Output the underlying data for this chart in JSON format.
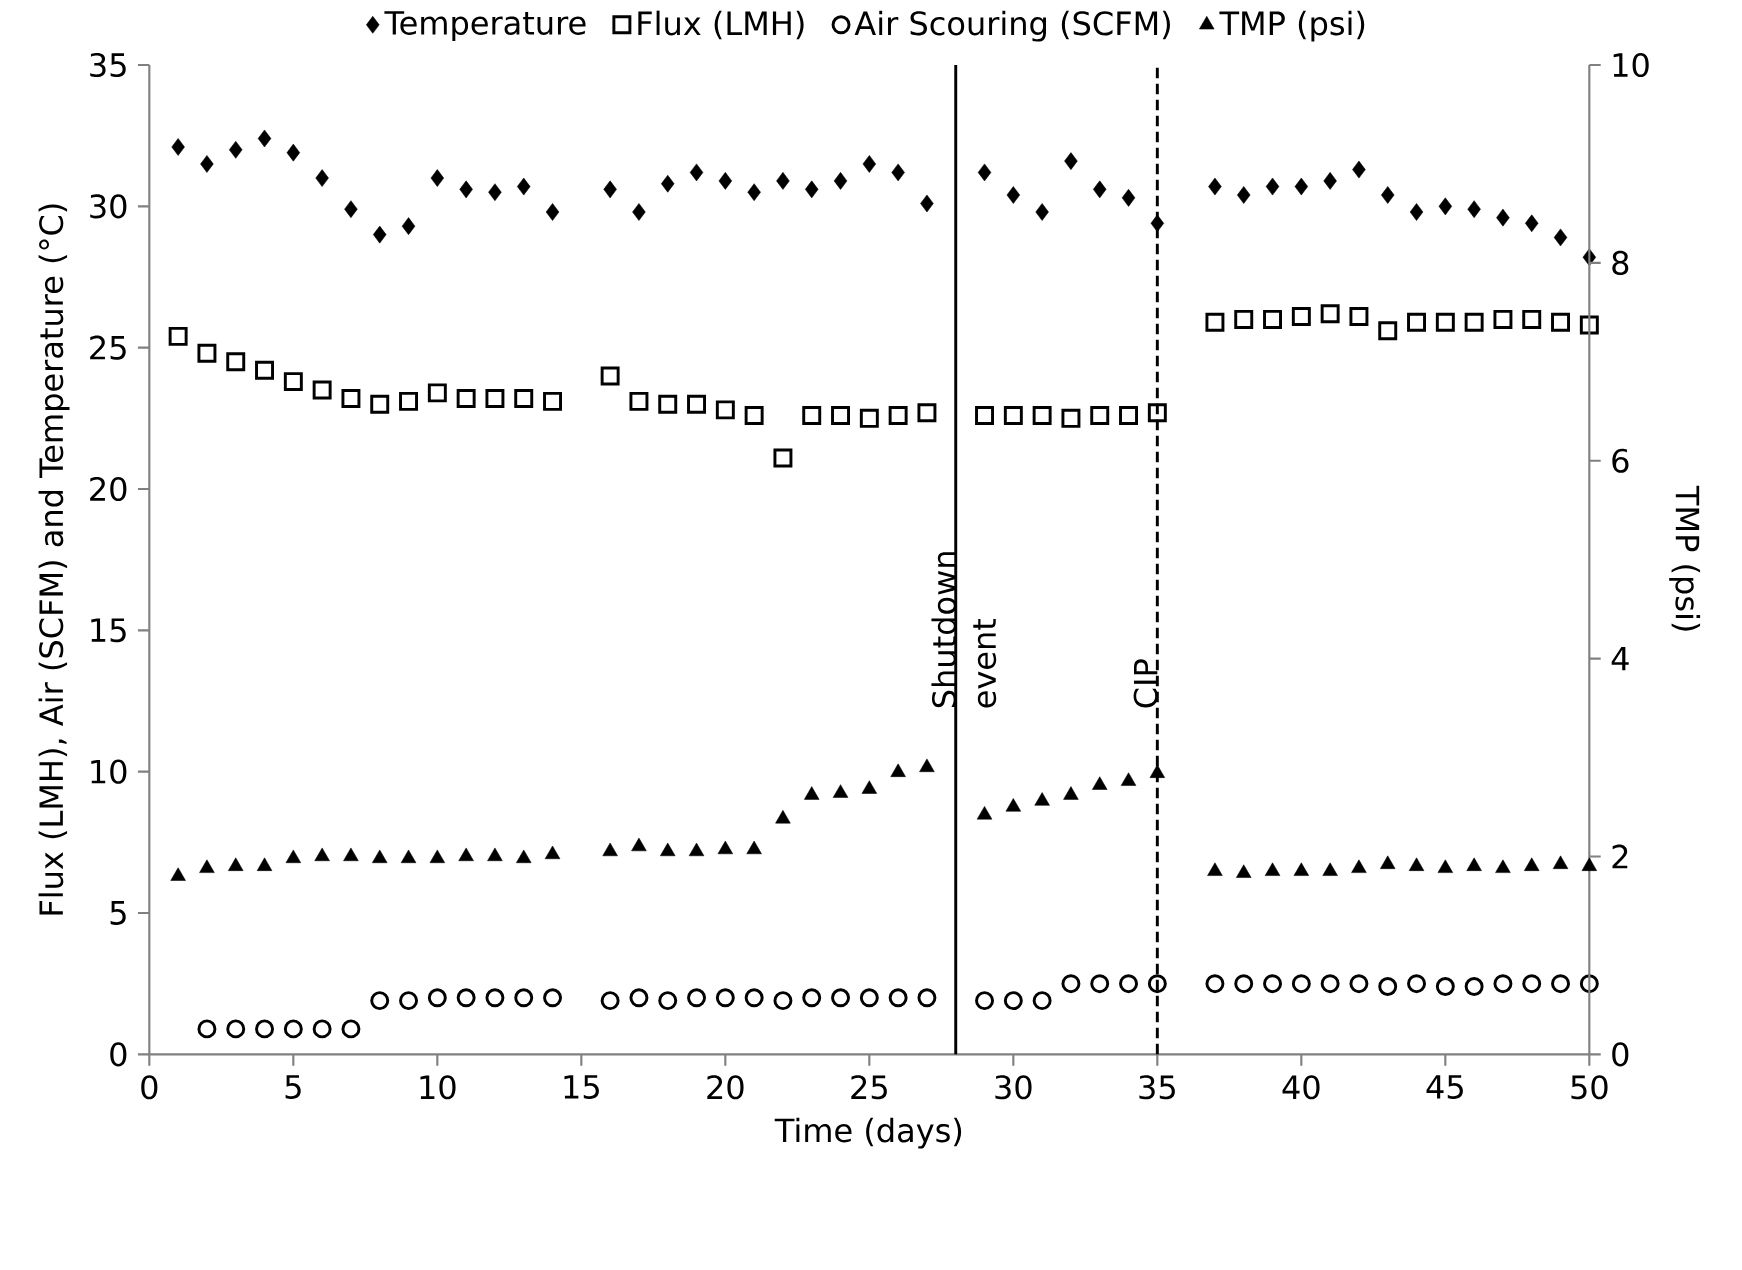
{
  "chart_data": {
    "type": "scatter",
    "xlabel": "Time (days)",
    "ylabel": "Flux (LMH), Air (SCFM) and Temperature (°C)",
    "y2label": "TMP (psi)",
    "x": [
      1,
      2,
      3,
      4,
      5,
      6,
      7,
      8,
      9,
      10,
      11,
      12,
      13,
      14,
      15,
      16,
      17,
      18,
      19,
      20,
      21,
      22,
      23,
      24,
      25,
      26,
      27,
      28,
      29,
      30,
      31,
      32,
      33,
      34,
      35,
      36,
      37,
      38,
      39,
      40,
      41,
      42,
      43,
      44,
      45,
      46,
      47,
      48,
      49,
      50
    ],
    "xlim": [
      0,
      50
    ],
    "xticks": [
      0,
      5,
      10,
      15,
      20,
      25,
      30,
      35,
      40,
      45,
      50
    ],
    "ylim": [
      0,
      35
    ],
    "yticks": [
      0,
      5,
      10,
      15,
      20,
      25,
      30,
      35
    ],
    "y2lim": [
      0,
      10
    ],
    "y2ticks": [
      0,
      2,
      4,
      6,
      8,
      10
    ],
    "legend": "top",
    "grid": false,
    "series": [
      {
        "name": "Temperature",
        "color": "#000000",
        "marker": "diamond",
        "values": [
          32.1,
          31.5,
          32.0,
          32.4,
          31.9,
          31.0,
          29.9,
          29.0,
          29.3,
          31.0,
          30.6,
          30.5,
          30.7,
          29.8,
          null,
          30.6,
          29.8,
          30.8,
          31.2,
          30.9,
          30.5,
          30.9,
          30.6,
          30.9,
          31.5,
          31.2,
          30.1,
          null,
          31.2,
          30.4,
          29.8,
          31.6,
          30.6,
          30.3,
          29.4,
          null,
          30.7,
          30.4,
          30.7,
          30.7,
          30.9,
          31.3,
          30.4,
          29.8,
          30.0,
          29.9,
          29.6,
          29.4,
          28.9,
          28.2
        ]
      },
      {
        "name": "Flux (LMH)",
        "color": "#000000",
        "marker": "square",
        "values": [
          25.4,
          24.8,
          24.5,
          24.2,
          23.8,
          23.5,
          23.2,
          23.0,
          23.1,
          23.4,
          23.2,
          23.2,
          23.2,
          23.1,
          null,
          24.0,
          23.1,
          23.0,
          23.0,
          22.8,
          22.6,
          21.1,
          22.6,
          22.6,
          22.5,
          22.6,
          22.7,
          null,
          22.6,
          22.6,
          22.6,
          22.5,
          22.6,
          22.6,
          22.7,
          null,
          25.9,
          26.0,
          26.0,
          26.1,
          26.2,
          26.1,
          25.6,
          25.9,
          25.9,
          25.9,
          26.0,
          26.0,
          25.9,
          25.8
        ]
      },
      {
        "name": "Air Scouring (SCFM)",
        "color": "#000000",
        "marker": "circle",
        "values": [
          null,
          0.9,
          0.9,
          0.9,
          0.9,
          0.9,
          0.9,
          1.9,
          1.9,
          2.0,
          2.0,
          2.0,
          2.0,
          2.0,
          null,
          1.9,
          2.0,
          1.9,
          2.0,
          2.0,
          2.0,
          1.9,
          2.0,
          2.0,
          2.0,
          2.0,
          2.0,
          null,
          1.9,
          1.9,
          1.9,
          2.5,
          2.5,
          2.5,
          2.5,
          null,
          2.5,
          2.5,
          2.5,
          2.5,
          2.5,
          2.5,
          2.4,
          2.5,
          2.4,
          2.4,
          2.5,
          2.5,
          2.5,
          2.5
        ]
      },
      {
        "name": "TMP (psi)",
        "color": "#000000",
        "marker": "triangle",
        "axis": "y2",
        "values": [
          1.8,
          1.88,
          1.9,
          1.9,
          1.98,
          2.0,
          2.0,
          1.98,
          1.98,
          1.98,
          2.0,
          2.0,
          1.98,
          2.02,
          null,
          2.05,
          2.1,
          2.05,
          2.05,
          2.07,
          2.07,
          2.38,
          2.62,
          2.64,
          2.68,
          2.85,
          2.9,
          null,
          2.42,
          2.5,
          2.56,
          2.62,
          2.72,
          2.76,
          2.84,
          null,
          1.85,
          1.83,
          1.85,
          1.85,
          1.85,
          1.88,
          1.92,
          1.9,
          1.88,
          1.9,
          1.88,
          1.9,
          1.92,
          1.9
        ]
      }
    ],
    "ref_lines": [
      {
        "axis": "x",
        "value": 28,
        "label": "Shutdown event",
        "color": "#000000",
        "line_style": "solid"
      },
      {
        "axis": "x",
        "value": 35,
        "label": "CIP",
        "color": "#000000",
        "line_style": "dashed"
      }
    ]
  }
}
